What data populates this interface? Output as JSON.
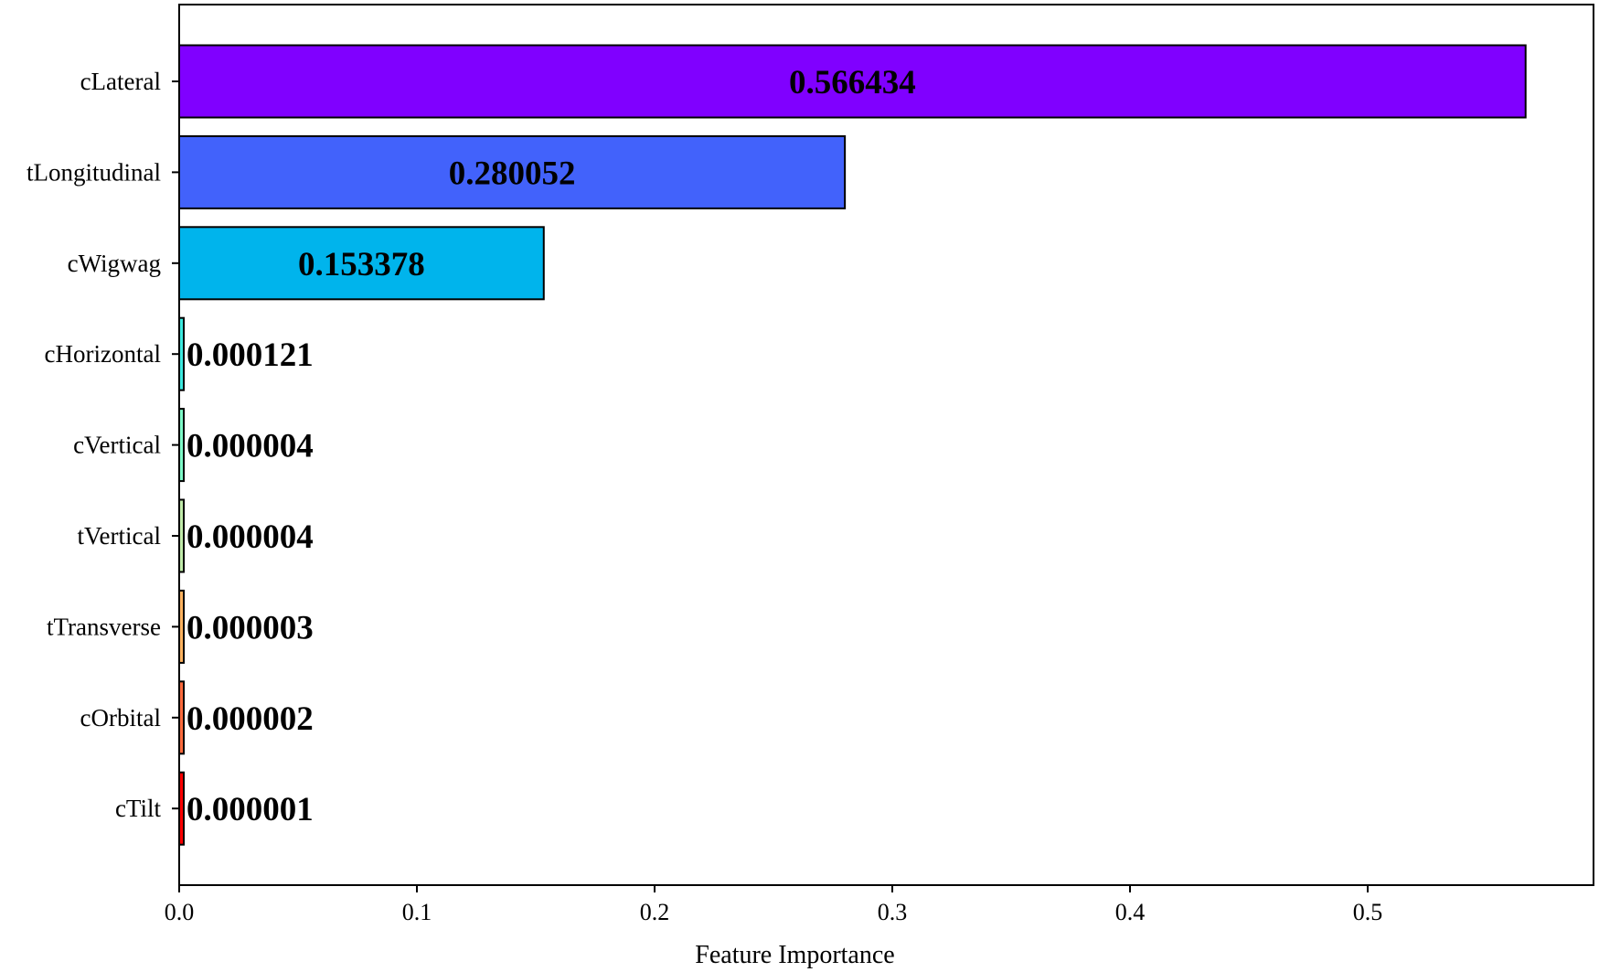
{
  "chart_data": {
    "type": "bar",
    "orientation": "horizontal",
    "title": "",
    "xlabel": "Feature Importance",
    "ylabel": "",
    "xlim": [
      0,
      0.595
    ],
    "x_ticks": [
      0.0,
      0.1,
      0.2,
      0.3,
      0.4,
      0.5
    ],
    "x_tick_labels": [
      "0.0",
      "0.1",
      "0.2",
      "0.3",
      "0.4",
      "0.5"
    ],
    "grid": false,
    "legend": "none",
    "categories": [
      "cLateral",
      "tLongitudinal",
      "cWigwag",
      "cHorizontal",
      "cVertical",
      "tVertical",
      "tTransverse",
      "cOrbital",
      "cTilt"
    ],
    "values": [
      0.566434,
      0.280052,
      0.153378,
      0.000121,
      4e-06,
      4e-06,
      3e-06,
      2e-06,
      1e-06
    ],
    "value_labels": [
      "0.566434",
      "0.280052",
      "0.153378",
      "0.000121",
      "0.000004",
      "0.000004",
      "0.000003",
      "0.000002",
      "0.000001"
    ],
    "colors": [
      "#8000ff",
      "#4262fb",
      "#00b4ec",
      "#3ceae0",
      "#7efcc9",
      "#c1ecaa",
      "#ffb360",
      "#ff6b3d",
      "#ff0000"
    ]
  }
}
